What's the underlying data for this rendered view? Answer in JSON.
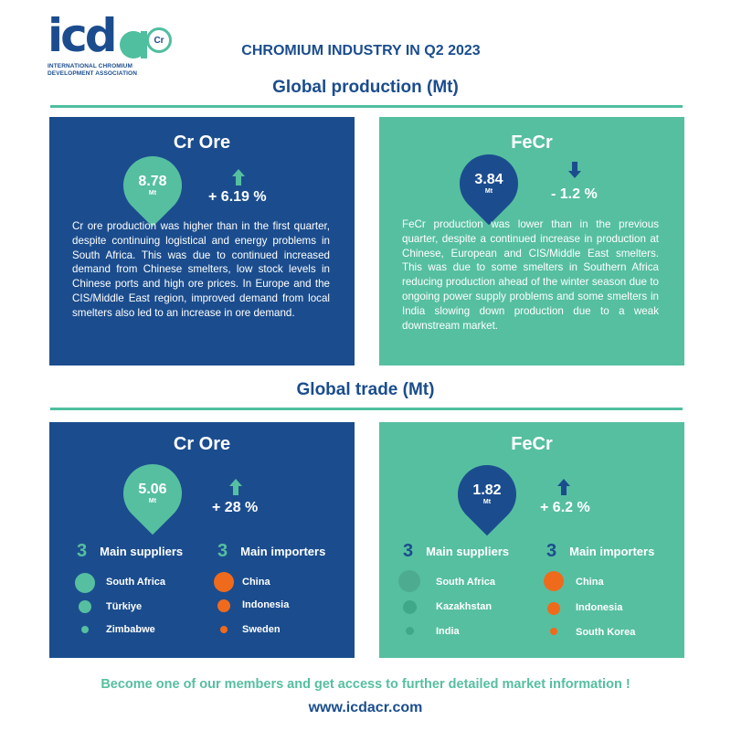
{
  "brand": {
    "logo_text": "icd",
    "logo_badge": "Cr",
    "logo_sub_line1": "INTERNATIONAL CHROMIUM",
    "logo_sub_line2": "DEVELOPMENT ASSOCIATION",
    "website": "www.icdacr.com"
  },
  "colors": {
    "navy": "#1b4d8e",
    "teal": "#56bfa0",
    "orange": "#f06a1c"
  },
  "title": "CHROMIUM INDUSTRY IN Q2 2023",
  "production": {
    "heading": "Global production (Mt)",
    "cr_ore": {
      "title": "Cr Ore",
      "value": "8.78",
      "unit": "Mt",
      "trend": "up",
      "change": "+ 6.19 %",
      "description": "Cr ore production was higher than in the first quarter, despite continuing logistical and energy problems in South Africa. This was due to continued increased demand from Chinese smelters, low stock levels in Chinese ports and high ore prices. In Europe and the CIS/Middle East region, improved demand from local smelters also led to an increase in ore demand."
    },
    "fecr": {
      "title": "FeCr",
      "value": "3.84",
      "unit": "Mt",
      "trend": "down",
      "change": "- 1.2 %",
      "description": "FeCr production was lower than in the previous quarter, despite a continued increase in production at Chinese, European and CIS/Middle East smelters. This was due to some smelters in Southern Africa reducing production ahead of the winter season due to ongoing power supply problems and some smelters in India slowing down production due to a weak downstream market."
    }
  },
  "trade": {
    "heading": "Global trade (Mt)",
    "cr_ore": {
      "title": "Cr Ore",
      "value": "5.06",
      "unit": "Mt",
      "trend": "up",
      "change": "+ 28 %",
      "suppliers_count": "3",
      "suppliers_label": "Main suppliers",
      "importers_count": "3",
      "importers_label": "Main importers",
      "suppliers": [
        "South Africa",
        "Türkiye",
        "Zimbabwe"
      ],
      "importers": [
        "China",
        "Indonesia",
        "Sweden"
      ]
    },
    "fecr": {
      "title": "FeCr",
      "value": "1.82",
      "unit": "Mt",
      "trend": "up",
      "change": "+ 6.2 %",
      "suppliers_count": "3",
      "suppliers_label": "Main suppliers",
      "importers_count": "3",
      "importers_label": "Main importers",
      "suppliers": [
        "South Africa",
        "Kazakhstan",
        "India"
      ],
      "importers": [
        "China",
        "Indonesia",
        "South Korea"
      ]
    }
  },
  "footer": {
    "cta": "Become one of our members and get access to further detailed market information !"
  }
}
